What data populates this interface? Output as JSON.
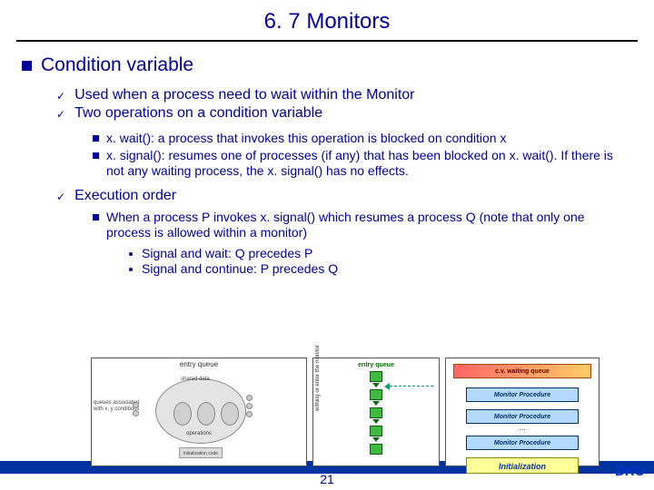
{
  "title": "6. 7 Monitors",
  "lvl1": "Condition variable",
  "lvl2_1": "Used when a process need to wait within the Monitor",
  "lvl2_2": "Two operations on a condition variable",
  "lvl3_1": "x. wait(): a process that invokes this operation is blocked on condition x",
  "lvl3_2": "x. signal(): resumes one of processes (if any) that has been blocked on x. wait(). If there is not any waiting process, the x. signal() has no effects.",
  "lvl2_3": "Execution order",
  "lvl3_3": "When a process P invokes x. signal() which resumes a process Q (note that only one process is allowed within a monitor)",
  "lvl4_1": "Signal and wait: Q precedes P",
  "lvl4_2": "Signal and continue: P precedes Q",
  "page_num": "21",
  "footer": "DKU",
  "d1": {
    "top": "entry queue",
    "left": "queues associated with x, y conditions",
    "shared": "shared data",
    "ops": "operations",
    "init": "initialization code"
  },
  "d2": {
    "ylabel": "withing or enter the monitor",
    "eq": "entry queue"
  },
  "d3": {
    "cv": "c.v.",
    "wait": "c.v. waiting queue",
    "proc": "Monitor Procedure",
    "init": "Initialization"
  }
}
